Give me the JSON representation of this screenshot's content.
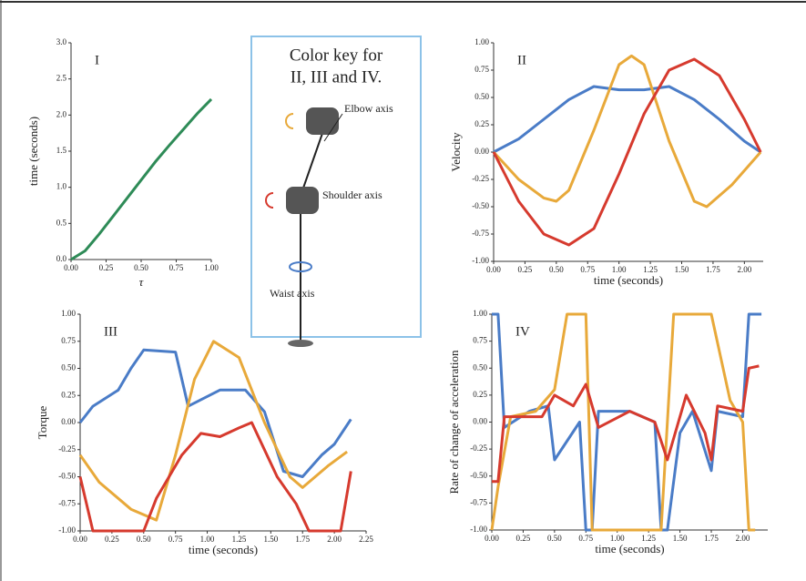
{
  "chart_data": [
    {
      "type": "line",
      "label": "I",
      "xlabel": "τ",
      "ylabel": "time (seconds)",
      "xlim": [
        0,
        1
      ],
      "ylim": [
        0,
        3
      ],
      "xticks": [
        {
          "value": 0,
          "label": "0.00"
        },
        {
          "value": 0.25,
          "label": "0.25"
        },
        {
          "value": 0.5,
          "label": "0.50"
        },
        {
          "value": 0.75,
          "label": "0.75"
        },
        {
          "value": 1,
          "label": "1.00"
        }
      ],
      "yticks": [
        {
          "value": 0,
          "label": "0.0"
        },
        {
          "value": 0.5,
          "label": "0.5"
        },
        {
          "value": 1,
          "label": "1.0"
        },
        {
          "value": 1.5,
          "label": "1.5"
        },
        {
          "value": 2,
          "label": "2.0"
        },
        {
          "value": 2.5,
          "label": "2.5"
        },
        {
          "value": 3,
          "label": "3.0"
        }
      ],
      "series": [
        {
          "color": "#2e8b57",
          "x": [
            0,
            0.1,
            0.2,
            0.3,
            0.4,
            0.5,
            0.6,
            0.7,
            0.8,
            0.9,
            1.0
          ],
          "values": [
            0,
            0.12,
            0.35,
            0.6,
            0.85,
            1.1,
            1.35,
            1.58,
            1.8,
            2.02,
            2.22
          ]
        }
      ]
    },
    {
      "type": "line",
      "label": "II",
      "xlabel": "time (seconds)",
      "ylabel": "Velocity",
      "xlim": [
        0,
        2.15
      ],
      "ylim": [
        -1,
        1
      ],
      "xticks": [
        {
          "value": 0,
          "label": "0.00"
        },
        {
          "value": 0.25,
          "label": "0.25"
        },
        {
          "value": 0.5,
          "label": "0.50"
        },
        {
          "value": 0.75,
          "label": "0.75"
        },
        {
          "value": 1,
          "label": "1.00"
        },
        {
          "value": 1.25,
          "label": "1.25"
        },
        {
          "value": 1.5,
          "label": "1.50"
        },
        {
          "value": 1.75,
          "label": "1.75"
        },
        {
          "value": 2,
          "label": "2.00"
        }
      ],
      "yticks": [
        {
          "value": -1,
          "label": "-1.00"
        },
        {
          "value": -0.75,
          "label": "-0.75"
        },
        {
          "value": -0.5,
          "label": "-0.50"
        },
        {
          "value": -0.25,
          "label": "-0.25"
        },
        {
          "value": 0,
          "label": "0.00"
        },
        {
          "value": 0.25,
          "label": "0.25"
        },
        {
          "value": 0.5,
          "label": "0.50"
        },
        {
          "value": 0.75,
          "label": "0.75"
        },
        {
          "value": 1,
          "label": "1.00"
        }
      ],
      "series": [
        {
          "color": "#4a7cc7",
          "x": [
            0,
            0.2,
            0.4,
            0.6,
            0.8,
            1.0,
            1.2,
            1.4,
            1.6,
            1.8,
            2.0,
            2.13
          ],
          "values": [
            0,
            0.12,
            0.3,
            0.48,
            0.6,
            0.57,
            0.57,
            0.6,
            0.48,
            0.3,
            0.1,
            0
          ]
        },
        {
          "color": "#e8a93a",
          "x": [
            0,
            0.2,
            0.4,
            0.5,
            0.6,
            0.8,
            1.0,
            1.1,
            1.2,
            1.4,
            1.6,
            1.7,
            1.9,
            2.13
          ],
          "values": [
            0,
            -0.25,
            -0.42,
            -0.45,
            -0.35,
            0.2,
            0.8,
            0.88,
            0.8,
            0.1,
            -0.45,
            -0.5,
            -0.3,
            0
          ]
        },
        {
          "color": "#d63a2e",
          "x": [
            0,
            0.2,
            0.4,
            0.6,
            0.8,
            1.0,
            1.2,
            1.4,
            1.6,
            1.8,
            2.0,
            2.13
          ],
          "values": [
            0,
            -0.45,
            -0.75,
            -0.85,
            -0.7,
            -0.2,
            0.35,
            0.75,
            0.85,
            0.7,
            0.3,
            0
          ]
        }
      ]
    },
    {
      "type": "line",
      "label": "III",
      "xlabel": "time (seconds)",
      "ylabel": "Torque",
      "xlim": [
        0,
        2.25
      ],
      "ylim": [
        -1,
        1
      ],
      "xticks": [
        {
          "value": 0,
          "label": "0.00"
        },
        {
          "value": 0.25,
          "label": "0.25"
        },
        {
          "value": 0.5,
          "label": "0.50"
        },
        {
          "value": 0.75,
          "label": "0.75"
        },
        {
          "value": 1,
          "label": "1.00"
        },
        {
          "value": 1.25,
          "label": "1.25"
        },
        {
          "value": 1.5,
          "label": "1.50"
        },
        {
          "value": 1.75,
          "label": "1.75"
        },
        {
          "value": 2,
          "label": "2.00"
        },
        {
          "value": 2.25,
          "label": "2.25"
        }
      ],
      "yticks": [
        {
          "value": -1,
          "label": "-1.00"
        },
        {
          "value": -0.75,
          "label": "-0.75"
        },
        {
          "value": -0.5,
          "label": "-0.50"
        },
        {
          "value": -0.25,
          "label": "-0.25"
        },
        {
          "value": 0,
          "label": "0.00"
        },
        {
          "value": 0.25,
          "label": "0.25"
        },
        {
          "value": 0.5,
          "label": "0.50"
        },
        {
          "value": 0.75,
          "label": "0.75"
        },
        {
          "value": 1,
          "label": "1.00"
        }
      ],
      "series": [
        {
          "color": "#4a7cc7",
          "x": [
            0,
            0.1,
            0.3,
            0.4,
            0.5,
            0.75,
            0.85,
            1.1,
            1.3,
            1.45,
            1.6,
            1.75,
            1.9,
            2.0,
            2.13
          ],
          "values": [
            0,
            0.15,
            0.3,
            0.5,
            0.67,
            0.65,
            0.15,
            0.3,
            0.3,
            0.1,
            -0.45,
            -0.5,
            -0.3,
            -0.2,
            0.03
          ]
        },
        {
          "color": "#e8a93a",
          "x": [
            0,
            0.15,
            0.4,
            0.6,
            0.75,
            0.9,
            1.05,
            1.25,
            1.45,
            1.65,
            1.75,
            1.95,
            2.1
          ],
          "values": [
            -0.3,
            -0.55,
            -0.8,
            -0.9,
            -0.3,
            0.4,
            0.75,
            0.6,
            0,
            -0.5,
            -0.6,
            -0.4,
            -0.27
          ]
        },
        {
          "color": "#d63a2e",
          "x": [
            0,
            0.1,
            0.5,
            0.6,
            0.8,
            0.95,
            1.1,
            1.25,
            1.35,
            1.55,
            1.7,
            1.8,
            2.05,
            2.13
          ],
          "values": [
            -0.5,
            -1,
            -1,
            -0.7,
            -0.3,
            -0.1,
            -0.13,
            -0.05,
            0,
            -0.5,
            -0.75,
            -1,
            -1,
            -0.45
          ]
        }
      ]
    },
    {
      "type": "line",
      "label": "IV",
      "xlabel": "time (seconds)",
      "ylabel": "Rate of change of acceleration",
      "xlim": [
        0,
        2.2
      ],
      "ylim": [
        -1,
        1
      ],
      "xticks": [
        {
          "value": 0,
          "label": "0.00"
        },
        {
          "value": 0.25,
          "label": "0.25"
        },
        {
          "value": 0.5,
          "label": "0.50"
        },
        {
          "value": 0.75,
          "label": "0.75"
        },
        {
          "value": 1,
          "label": "1.00"
        },
        {
          "value": 1.25,
          "label": "1.25"
        },
        {
          "value": 1.5,
          "label": "1.50"
        },
        {
          "value": 1.75,
          "label": "1.75"
        },
        {
          "value": 2,
          "label": "2.00"
        }
      ],
      "yticks": [
        {
          "value": -1,
          "label": "-1.00"
        },
        {
          "value": -0.75,
          "label": "-0.75"
        },
        {
          "value": -0.5,
          "label": "-0.50"
        },
        {
          "value": -0.25,
          "label": "-0.25"
        },
        {
          "value": 0,
          "label": "0.00"
        },
        {
          "value": 0.25,
          "label": "0.25"
        },
        {
          "value": 0.5,
          "label": "0.50"
        },
        {
          "value": 0.75,
          "label": "0.75"
        },
        {
          "value": 1,
          "label": "1.00"
        }
      ],
      "series": [
        {
          "color": "#4a7cc7",
          "x": [
            0,
            0.05,
            0.1,
            0.3,
            0.45,
            0.5,
            0.7,
            0.75,
            0.8,
            0.85,
            1.1,
            1.3,
            1.35,
            1.4,
            1.5,
            1.6,
            1.75,
            1.8,
            2.0,
            2.05,
            2.15
          ],
          "values": [
            1,
            1,
            -0.05,
            0.1,
            0.15,
            -0.35,
            0,
            -1,
            -1,
            0.1,
            0.1,
            0,
            -1,
            -1,
            -0.1,
            0.1,
            -0.45,
            0.1,
            0.05,
            1,
            1
          ]
        },
        {
          "color": "#e8a93a",
          "x": [
            0,
            0.05,
            0.15,
            0.35,
            0.5,
            0.6,
            0.75,
            0.8,
            1.35,
            1.45,
            1.75,
            1.9,
            2.0,
            2.05,
            2.1
          ],
          "values": [
            -1,
            -0.6,
            0.05,
            0.1,
            0.3,
            1,
            1,
            -1,
            -1,
            1,
            1,
            0.2,
            0,
            -1,
            -1
          ]
        },
        {
          "color": "#d63a2e",
          "x": [
            0,
            0.05,
            0.1,
            0.4,
            0.5,
            0.65,
            0.75,
            0.85,
            1.1,
            1.3,
            1.4,
            1.55,
            1.7,
            1.75,
            1.8,
            2.0,
            2.05,
            2.13
          ],
          "values": [
            -0.55,
            -0.55,
            0.05,
            0.05,
            0.25,
            0.15,
            0.35,
            -0.05,
            0.1,
            0,
            -0.35,
            0.25,
            -0.1,
            -0.35,
            0.15,
            0.1,
            0.5,
            0.52
          ]
        }
      ]
    }
  ],
  "color_key": {
    "title_line1": "Color key for",
    "title_line2": "II, III and IV.",
    "elbow": "Elbow axis",
    "shoulder": "Shoulder axis",
    "waist": "Waist axis"
  }
}
